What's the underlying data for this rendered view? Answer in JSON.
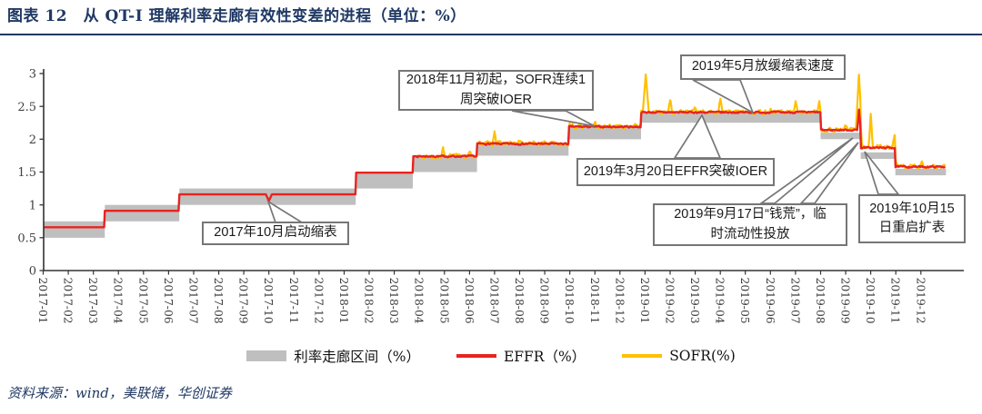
{
  "header": {
    "title": "图表 12　从 QT-I 理解利率走廊有效性变差的进程（单位：%）"
  },
  "source_note": "资料来源：wind，美联储，华创证券",
  "colors": {
    "accent_navy": "#1f3864",
    "corridor_band_gray": "#bfbfbf",
    "effr_red": "#e8231f",
    "sofr_yellow": "#ffc000",
    "annotation_border": "#767676",
    "axis": "#333333",
    "tick_text": "#3f3f3f"
  },
  "legend": [
    {
      "label": "利率走廊区间（%）",
      "type": "band"
    },
    {
      "label": "EFFR（%）",
      "type": "line"
    },
    {
      "label": "SOFR(%)",
      "type": "line"
    }
  ],
  "annotations": [
    {
      "id": "taper-start",
      "text": "2017年10月启动缩表"
    },
    {
      "id": "sofr-breaks-ioer",
      "text": "2018年11月初起，SOFR连续1\n周突破IOER"
    },
    {
      "id": "slow-taper",
      "text": "2019年5月放缓缩表速度"
    },
    {
      "id": "effr-breaks-ioer",
      "text": "2019年3月20日EFFR突破IOER"
    },
    {
      "id": "repo-money-squeeze",
      "text": "2019年9月17日“钱荒”，临\n时流动性投放"
    },
    {
      "id": "restart-expansion",
      "text": "2019年10月15\n日重启扩表"
    }
  ],
  "chart_data": {
    "type": "line",
    "title": "从 QT-I 理解利率走廊有效性变差的进程",
    "unit": "%",
    "ylim": [
      0,
      3
    ],
    "y_tick_labels": [
      "0",
      "0.5",
      "1",
      "1.5",
      "2",
      "2.5",
      "3"
    ],
    "x_tick_labels": [
      "2017-01",
      "2017-02",
      "2017-03",
      "2017-04",
      "2017-05",
      "2017-06",
      "2017-07",
      "2017-08",
      "2017-09",
      "2017-10",
      "2017-11",
      "2017-12",
      "2018-01",
      "2018-02",
      "2018-03",
      "2018-04",
      "2018-05",
      "2018-06",
      "2018-07",
      "2018-08",
      "2018-09",
      "2018-10",
      "2018-11",
      "2018-12",
      "2019-01",
      "2019-02",
      "2019-03",
      "2019-04",
      "2019-05",
      "2019-06",
      "2019-07",
      "2019-08",
      "2019-09",
      "2019-10",
      "2019-11",
      "2019-12"
    ],
    "grid": false,
    "legend_position": "bottom",
    "corridor_regimes": [
      {
        "m": 0,
        "start": "2017-01",
        "low": 0.5,
        "high": 0.75,
        "effr": 0.66
      },
      {
        "m": 2.46,
        "start": "2017-03",
        "low": 0.75,
        "high": 1.0,
        "effr": 0.91
      },
      {
        "m": 5.43,
        "start": "2017-06",
        "low": 1.0,
        "high": 1.25,
        "effr": 1.16
      },
      {
        "m": 12.46,
        "start": "2018-01",
        "low": 1.25,
        "high": 1.5,
        "effr": 1.49
      },
      {
        "m": 14.74,
        "start": "2018-03",
        "low": 1.5,
        "high": 1.75,
        "effr": 1.74
      },
      {
        "m": 17.3,
        "start": "2018-06",
        "low": 1.75,
        "high": 1.95,
        "effr": 1.93
      },
      {
        "m": 20.95,
        "start": "2018-10",
        "low": 2.0,
        "high": 2.2,
        "effr": 2.19
      },
      {
        "m": 23.84,
        "start": "2018-12",
        "low": 2.25,
        "high": 2.4,
        "effr": 2.41
      },
      {
        "m": 31.0,
        "start": "2019-08",
        "low": 2.0,
        "high": 2.1,
        "effr": 2.14
      },
      {
        "m": 32.6,
        "start": "2019-09",
        "low": 1.7,
        "high": 1.8,
        "effr": 1.87
      },
      {
        "m": 33.98,
        "start": "2019-11",
        "low": 1.45,
        "high": 1.55,
        "effr": 1.58
      }
    ],
    "effr": {
      "name": "EFFR（%）",
      "dip": {
        "m": 9.0,
        "date": "2017-10",
        "value": 1.06
      },
      "spike": {
        "m": 32.53,
        "date": "2019-09-17",
        "value": 2.45
      }
    },
    "sofr": {
      "name": "SOFR(%)",
      "start_m": 14.9,
      "start": "2018-04",
      "spikes": [
        {
          "m": 15.95,
          "date": "2018-04-30",
          "value": 1.85
        },
        {
          "m": 18.0,
          "date": "2018-07-02",
          "value": 2.14
        },
        {
          "m": 21.05,
          "date": "2018-10-01",
          "value": 2.3
        },
        {
          "m": 22.0,
          "date": "2018-11-01",
          "value": 2.26
        },
        {
          "m": 24.03,
          "date": "2018-12-31",
          "value": 3.0
        },
        {
          "m": 25.0,
          "date": "2019-02-01",
          "value": 2.6
        },
        {
          "m": 27.0,
          "date": "2019-04-01",
          "value": 2.62
        },
        {
          "m": 28.0,
          "date": "2019-05-01",
          "value": 2.45
        },
        {
          "m": 30.0,
          "date": "2019-07-01",
          "value": 2.55
        },
        {
          "m": 30.95,
          "date": "2019-08-01",
          "value": 2.56
        },
        {
          "m": 32.53,
          "date": "2019-09-17",
          "value": 3.0
        },
        {
          "m": 33.0,
          "date": "2019-10-01",
          "value": 2.37
        },
        {
          "m": 33.95,
          "date": "2019-10-31",
          "value": 2.06
        },
        {
          "m": 35.05,
          "date": "2019-12-02",
          "value": 1.66
        }
      ]
    }
  }
}
